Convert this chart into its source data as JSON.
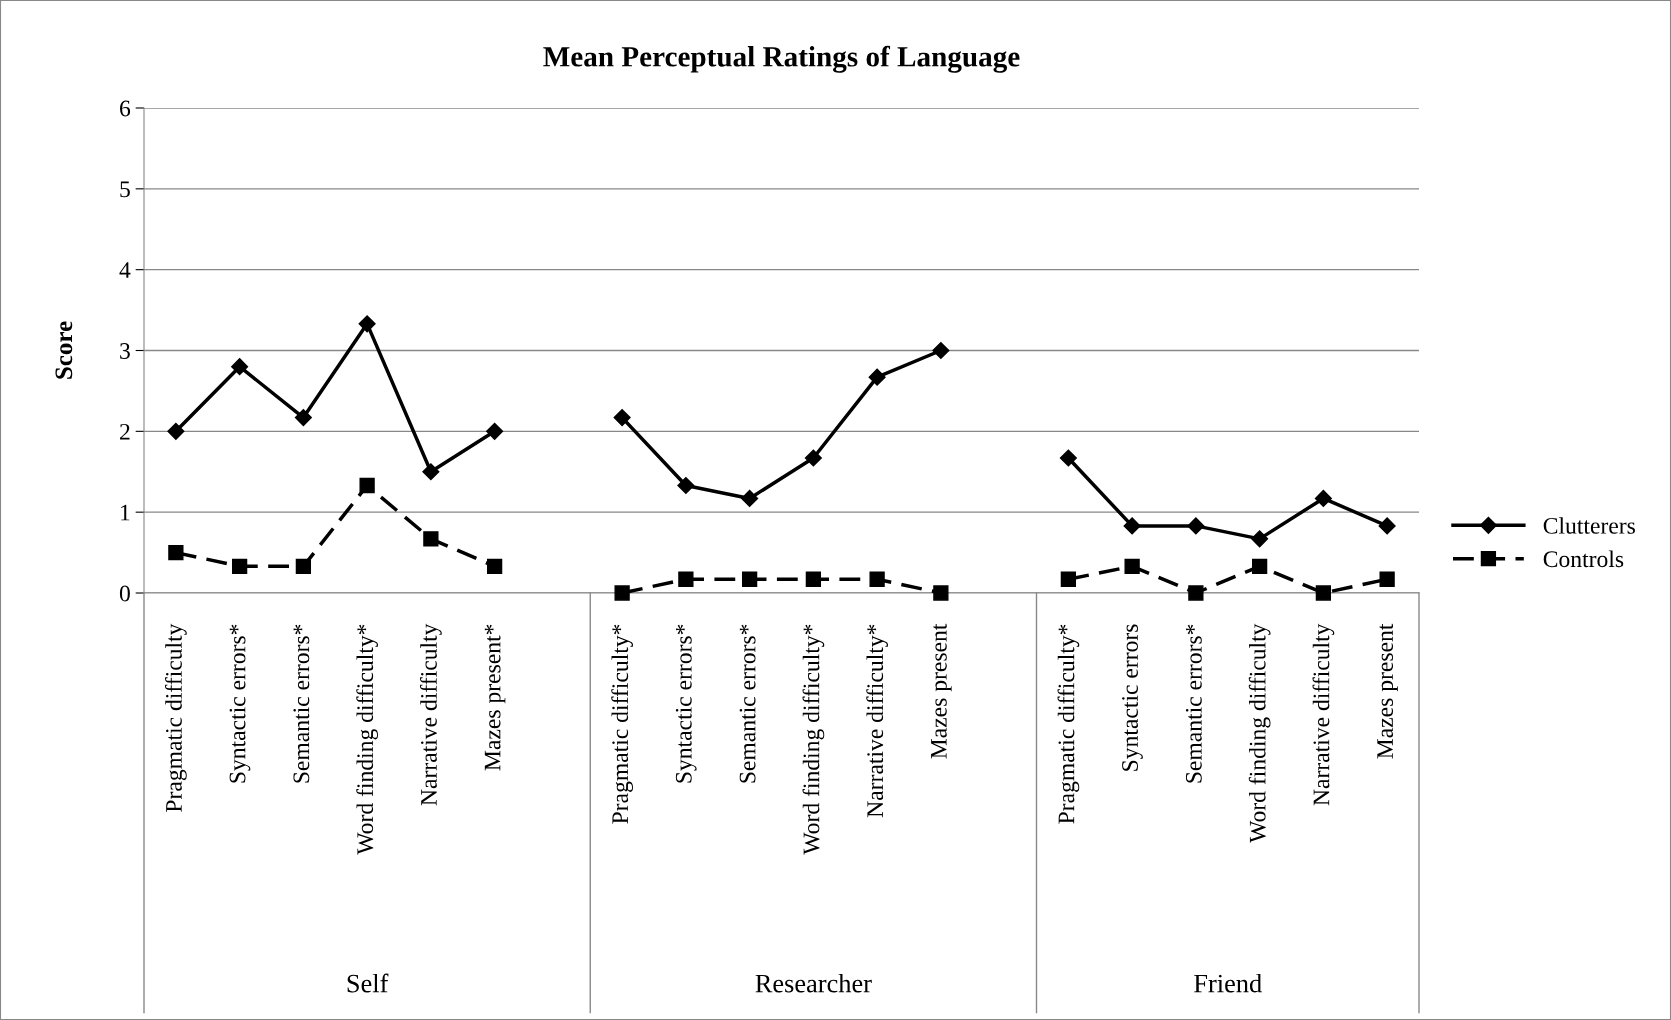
{
  "chart_data": {
    "type": "line",
    "title": "Mean Perceptual Ratings of Language",
    "ylabel": "Score",
    "categories": [
      "Pragmatic difficulty",
      "Syntactic errors*",
      "Semantic errors*",
      "Word finding difficulty*",
      "Narrative difficulty",
      "Mazes present*",
      null,
      "Pragmatic difficulty*",
      "Syntactic errors*",
      "Semantic errors*",
      "Word finding difficulty*",
      "Narrative difficulty*",
      "Mazes present",
      null,
      "Pragmatic difficulty*",
      "Syntactic errors",
      "Semantic errors*",
      "Word finding difficulty",
      "Narrative difficulty",
      "Mazes present"
    ],
    "series": [
      {
        "name": "Clutterers",
        "color": "#000000",
        "marker": "diamond",
        "line_style": "solid",
        "values": [
          2,
          2.8,
          2.17,
          3.33,
          1.5,
          2,
          null,
          2.17,
          1.33,
          1.17,
          1.67,
          2.67,
          3,
          null,
          1.67,
          0.83,
          0.83,
          0.67,
          1.17,
          0.83
        ]
      },
      {
        "name": "Controls",
        "color": "#000000",
        "marker": "square",
        "line_style": "dashed",
        "values": [
          0.5,
          0.33,
          0.33,
          1.33,
          0.67,
          0.33,
          null,
          0,
          0.17,
          0.17,
          0.17,
          0.17,
          0,
          null,
          0.17,
          0.33,
          0,
          0.33,
          0,
          0.17
        ]
      }
    ],
    "annotations": [
      "Self",
      "Researcher",
      "Friend"
    ],
    "ylim": [
      0,
      6
    ],
    "yticks": [
      0,
      1,
      2,
      3,
      4,
      5,
      6
    ],
    "grid": "y",
    "legend": "right"
  }
}
